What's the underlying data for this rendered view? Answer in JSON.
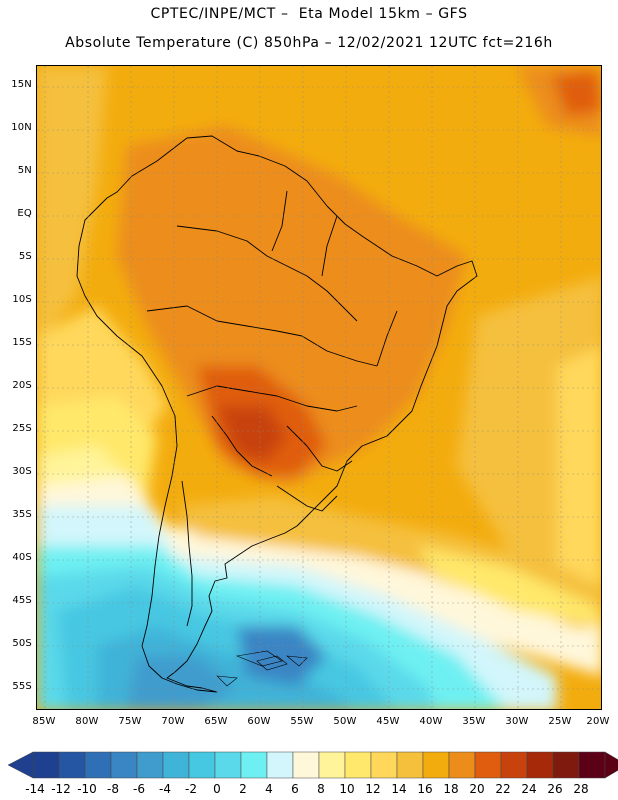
{
  "title": {
    "line1": "CPTEC/INPE/MCT –  Eta Model 15km – GFS",
    "line2": "Absolute Temperature (C) 850hPa – 12/02/2021 12UTC fct=216h"
  },
  "map": {
    "lat_labels": [
      "15N",
      "10N",
      "5N",
      "EQ",
      "5S",
      "10S",
      "15S",
      "20S",
      "25S",
      "30S",
      "35S",
      "40S",
      "45S",
      "50S",
      "55S"
    ],
    "lon_labels": [
      "85W",
      "80W",
      "75W",
      "70W",
      "65W",
      "60W",
      "55W",
      "50W",
      "45W",
      "40W",
      "35W",
      "30W",
      "25W",
      "20W"
    ],
    "lon_range": [
      -86,
      -20
    ],
    "lat_range": [
      17.5,
      -57.5
    ]
  },
  "colorbar": {
    "labels": [
      "-14",
      "-12",
      "-10",
      "-8",
      "-6",
      "-4",
      "-2",
      "0",
      "2",
      "4",
      "6",
      "8",
      "10",
      "12",
      "14",
      "16",
      "18",
      "20",
      "22",
      "24",
      "26",
      "28"
    ],
    "colors": [
      "#1f3f8f",
      "#2556a3",
      "#2f6fb5",
      "#3a85c4",
      "#3f9ccd",
      "#3fb3d8",
      "#46c7e2",
      "#5ad9ea",
      "#6ef0f2",
      "#d2f6fb",
      "#fff7da",
      "#fff49a",
      "#ffe86b",
      "#ffd85b",
      "#f5c03c",
      "#f3ac0e",
      "#ec8d1b",
      "#e05d10",
      "#c8420d",
      "#a62a0a",
      "#7f1a0f",
      "#5c0016"
    ]
  },
  "palette": {
    "ocean_warm": "#f3ac0e",
    "land_warm": "#ec8d1b",
    "hot": "#e05d10",
    "cold": "#46c7e2"
  }
}
